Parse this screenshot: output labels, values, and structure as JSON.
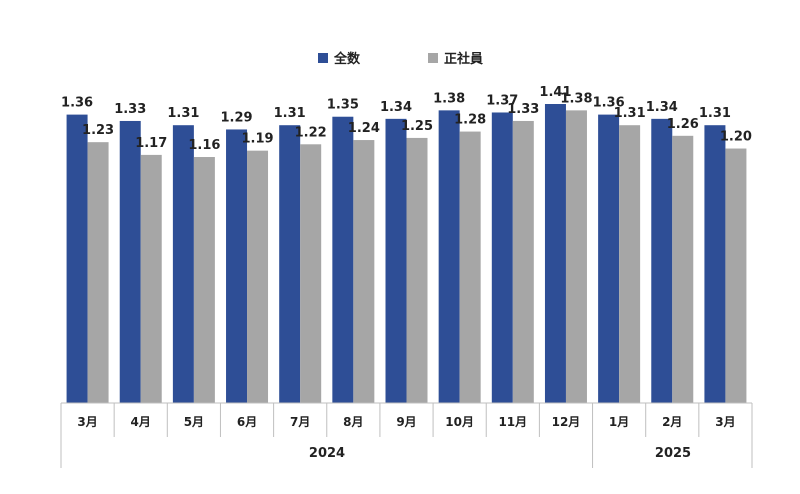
{
  "chart_data": {
    "type": "bar",
    "title": "",
    "xlabel": "",
    "ylabel": "",
    "ylim": [
      0,
      1.41
    ],
    "categories": [
      "3月",
      "4月",
      "5月",
      "6月",
      "7月",
      "8月",
      "9月",
      "10月",
      "11月",
      "12月",
      "1月",
      "2月",
      "3月"
    ],
    "year_groups": [
      {
        "label": "2024"
      },
      {
        "label": "2025"
      }
    ],
    "series": [
      {
        "name": "全数",
        "color": "#2E4E96",
        "values": [
          1.36,
          1.33,
          1.31,
          1.29,
          1.31,
          1.35,
          1.34,
          1.38,
          1.37,
          1.41,
          1.36,
          1.34,
          1.31
        ]
      },
      {
        "name": "正社員",
        "color": "#A6A6A6",
        "values": [
          1.23,
          1.17,
          1.16,
          1.19,
          1.22,
          1.24,
          1.25,
          1.28,
          1.33,
          1.38,
          1.31,
          1.26,
          1.2
        ]
      }
    ],
    "grid": false,
    "legend_position": "top-center",
    "data_labels": true
  }
}
